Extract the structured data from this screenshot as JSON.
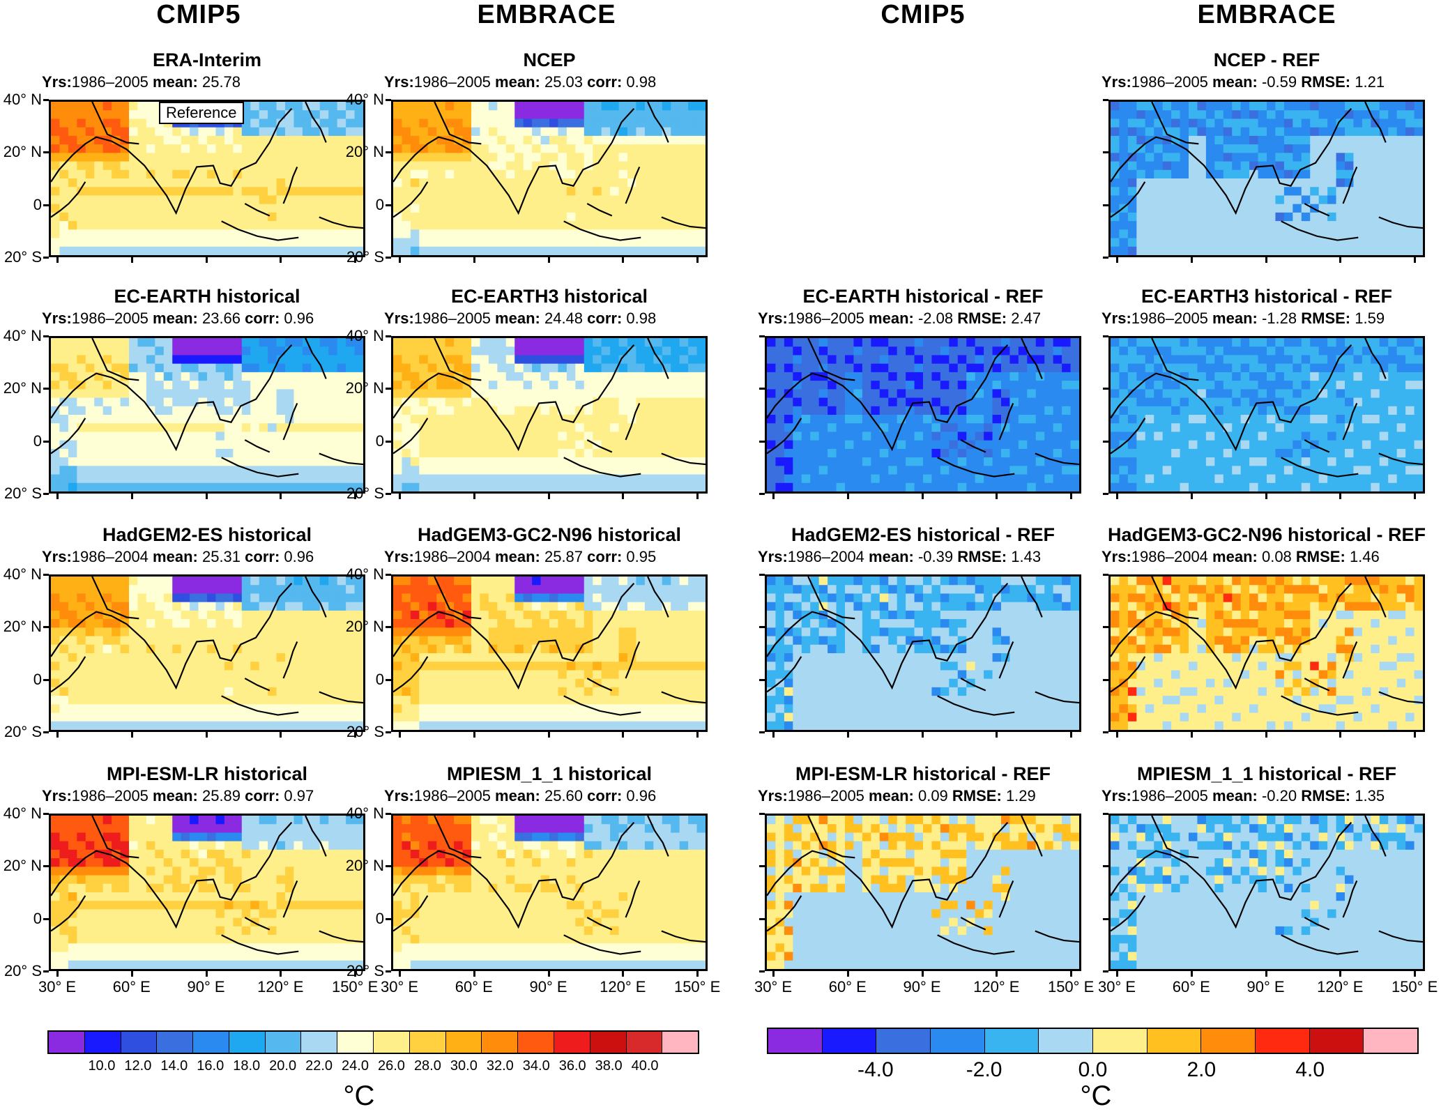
{
  "column_headers": [
    "CMIP5",
    "EMBRACE",
    "CMIP5",
    "EMBRACE"
  ],
  "stat_labels": {
    "yrs": "Yrs:",
    "mean": "mean:",
    "corr": "corr:",
    "rmse": "RMSE:"
  },
  "panels": [
    {
      "row": 0,
      "col": 0,
      "title": "ERA-Interim",
      "years": "1986–2005",
      "mean": "25.78",
      "metric": "",
      "metric_value": "",
      "type": "abs",
      "variant": "era"
    },
    {
      "row": 0,
      "col": 1,
      "title": "NCEP",
      "years": "1986–2005",
      "mean": "25.03",
      "metric": "corr",
      "metric_value": "0.98",
      "type": "abs",
      "variant": "ncep"
    },
    {
      "row": 0,
      "col": 3,
      "title": "NCEP - REF",
      "years": "1986–2005",
      "mean": "-0.59",
      "metric": "rmse",
      "metric_value": "1.21",
      "type": "diff",
      "variant": "ncepd"
    },
    {
      "row": 1,
      "col": 0,
      "title": "EC-EARTH historical",
      "years": "1986–2005",
      "mean": "23.66",
      "metric": "corr",
      "metric_value": "0.96",
      "type": "abs",
      "variant": "ecearth"
    },
    {
      "row": 1,
      "col": 1,
      "title": "EC-EARTH3 historical",
      "years": "1986–2005",
      "mean": "24.48",
      "metric": "corr",
      "metric_value": "0.98",
      "type": "abs",
      "variant": "ecearth3"
    },
    {
      "row": 1,
      "col": 2,
      "title": "EC-EARTH historical - REF",
      "years": "1986–2005",
      "mean": "-2.08",
      "metric": "rmse",
      "metric_value": "2.47",
      "type": "diff",
      "variant": "ecearthd"
    },
    {
      "row": 1,
      "col": 3,
      "title": "EC-EARTH3 historical - REF",
      "years": "1986–2005",
      "mean": "-1.28",
      "metric": "rmse",
      "metric_value": "1.59",
      "type": "diff",
      "variant": "ecearth3d"
    },
    {
      "row": 2,
      "col": 0,
      "title": "HadGEM2-ES historical",
      "years": "1986–2004",
      "mean": "25.31",
      "metric": "corr",
      "metric_value": "0.96",
      "type": "abs",
      "variant": "hadgem2"
    },
    {
      "row": 2,
      "col": 1,
      "title": "HadGEM3-GC2-N96 historical",
      "years": "1986–2004",
      "mean": "25.87",
      "metric": "corr",
      "metric_value": "0.95",
      "type": "abs",
      "variant": "hadgem3"
    },
    {
      "row": 2,
      "col": 2,
      "title": "HadGEM2-ES historical - REF",
      "years": "1986–2004",
      "mean": "-0.39",
      "metric": "rmse",
      "metric_value": "1.43",
      "type": "diff",
      "variant": "hadgem2d"
    },
    {
      "row": 2,
      "col": 3,
      "title": "HadGEM3-GC2-N96 historical - REF",
      "years": "1986–2004",
      "mean": "0.08",
      "metric": "rmse",
      "metric_value": "1.46",
      "type": "diff",
      "variant": "hadgem3d"
    },
    {
      "row": 3,
      "col": 0,
      "title": "MPI-ESM-LR historical",
      "years": "1986–2005",
      "mean": "25.89",
      "metric": "corr",
      "metric_value": "0.97",
      "type": "abs",
      "variant": "mpi"
    },
    {
      "row": 3,
      "col": 1,
      "title": "MPIESM_1_1 historical",
      "years": "1986–2005",
      "mean": "25.60",
      "metric": "corr",
      "metric_value": "0.96",
      "type": "abs",
      "variant": "mpi11"
    },
    {
      "row": 3,
      "col": 2,
      "title": "MPI-ESM-LR historical - REF",
      "years": "1986–2005",
      "mean": "0.09",
      "metric": "rmse",
      "metric_value": "1.29",
      "type": "diff",
      "variant": "mpid"
    },
    {
      "row": 3,
      "col": 3,
      "title": "MPIESM_1_1 historical - REF",
      "years": "1986–2005",
      "mean": "-0.20",
      "metric": "rmse",
      "metric_value": "1.35",
      "type": "diff",
      "variant": "mpi11d"
    }
  ],
  "reference_label": "Reference",
  "lat_labels": [
    "40° N",
    "20° N",
    "0",
    "20° S"
  ],
  "lon_labels": [
    "30° E",
    "60° E",
    "90° E",
    "120° E",
    "150° E"
  ],
  "abs_colorbar": {
    "colors": [
      "#8a2be2",
      "#1a1aff",
      "#2f4fe0",
      "#3a6fe0",
      "#2b8af0",
      "#1fa8f0",
      "#55b8ee",
      "#a9d8f2",
      "#ffffd6",
      "#ffef8a",
      "#ffd040",
      "#ffb014",
      "#ff8c0a",
      "#ff5a10",
      "#ee1c1c",
      "#cc1010",
      "#d82a2a",
      "#ffb6c1"
    ],
    "labels": [
      "10.0",
      "12.0",
      "14.0",
      "16.0",
      "18.0",
      "20.0",
      "22.0",
      "24.0",
      "26.0",
      "28.0",
      "30.0",
      "32.0",
      "34.0",
      "36.0",
      "38.0",
      "40.0"
    ],
    "unit": "°C"
  },
  "diff_colorbar": {
    "colors": [
      "#8a2be2",
      "#1a1aff",
      "#3a6fe0",
      "#2b8af0",
      "#3ab4f0",
      "#a9d8f2",
      "#ffef8a",
      "#ffc020",
      "#ff8c0a",
      "#ff2a10",
      "#cc1010",
      "#ffb6c1"
    ],
    "labels": [
      "-4.0",
      "-2.0",
      "0.0",
      "2.0",
      "4.0"
    ],
    "unit": "°C"
  }
}
